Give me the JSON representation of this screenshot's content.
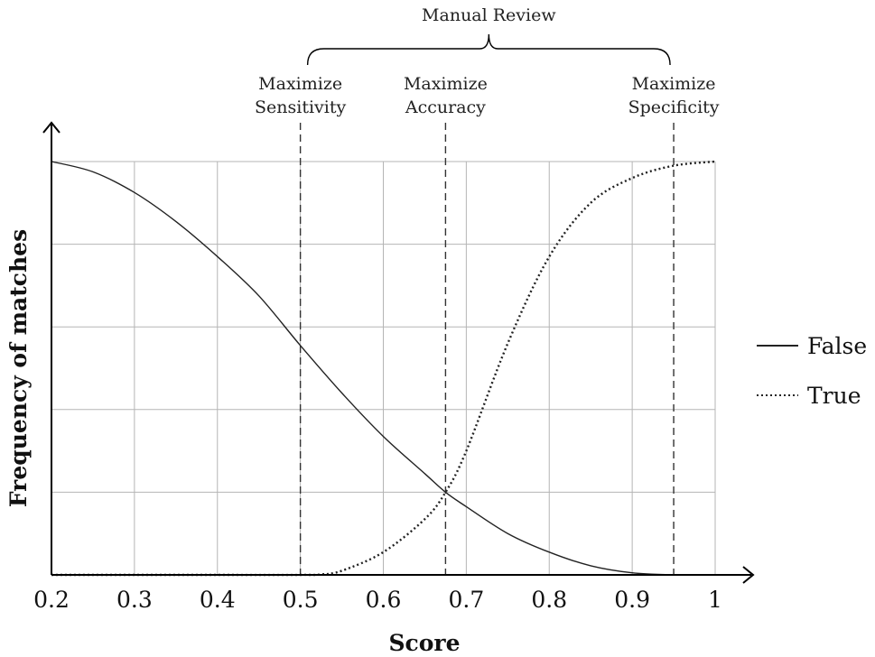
{
  "chart_data": {
    "type": "line",
    "xlabel": "Score",
    "ylabel": "Frequency of matches",
    "xlim": [
      0.2,
      1.0
    ],
    "ylim": [
      0,
      1
    ],
    "x_ticks": [
      "0.2",
      "0.3",
      "0.4",
      "0.5",
      "0.6",
      "0.7",
      "0.8",
      "0.9",
      "1"
    ],
    "y_ticks_shown": false,
    "grid": true,
    "legend_position": "right",
    "series": [
      {
        "name": "False",
        "style": "solid",
        "x": [
          0.2,
          0.25,
          0.3,
          0.35,
          0.4,
          0.45,
          0.5,
          0.55,
          0.6,
          0.65,
          0.675,
          0.7,
          0.75,
          0.8,
          0.85,
          0.9,
          0.95,
          1.0
        ],
        "y": [
          1.0,
          0.975,
          0.925,
          0.855,
          0.77,
          0.675,
          0.555,
          0.44,
          0.335,
          0.245,
          0.2,
          0.165,
          0.1,
          0.055,
          0.022,
          0.005,
          0.0,
          0.0
        ]
      },
      {
        "name": "True",
        "style": "dotted",
        "x": [
          0.2,
          0.3,
          0.4,
          0.5,
          0.525,
          0.55,
          0.6,
          0.65,
          0.675,
          0.7,
          0.75,
          0.8,
          0.85,
          0.9,
          0.95,
          1.0
        ],
        "y": [
          0.0,
          0.0,
          0.0,
          0.0,
          0.001,
          0.01,
          0.055,
          0.135,
          0.2,
          0.3,
          0.56,
          0.77,
          0.9,
          0.96,
          0.99,
          1.0
        ]
      }
    ],
    "thresholds": [
      {
        "x": 0.5,
        "label_lines": [
          "Maximize",
          "Sensitivity"
        ]
      },
      {
        "x": 0.675,
        "label_lines": [
          "Maximize",
          "Accuracy"
        ]
      },
      {
        "x": 0.95,
        "label_lines": [
          "Maximize",
          "Specificity"
        ]
      }
    ],
    "bracket": {
      "label": "Manual Review",
      "from_x": 0.5,
      "to_x": 0.95
    }
  }
}
